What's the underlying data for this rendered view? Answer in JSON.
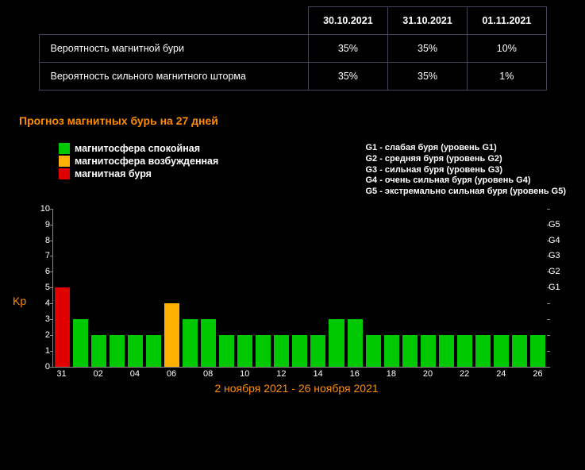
{
  "table": {
    "dates": [
      "30.10.2021",
      "31.10.2021",
      "01.11.2021"
    ],
    "rows": [
      {
        "label": "Вероятность магнитной бури",
        "values": [
          "35%",
          "35%",
          "10%"
        ]
      },
      {
        "label": "Вероятность сильного магнитного шторма",
        "values": [
          "35%",
          "35%",
          "1%"
        ]
      }
    ]
  },
  "chart_title": "Прогноз магнитных бурь на 27 дней",
  "kp_label": "Kp",
  "legend_left": [
    {
      "color": "#00c800",
      "text": "магнитосфера спокойная"
    },
    {
      "color": "#ffb000",
      "text": "магнитосфера возбужденная"
    },
    {
      "color": "#e00000",
      "text": "магнитная буря"
    }
  ],
  "legend_right": [
    "G1 - слабая буря (уровень G1)",
    "G2 - средняя буря (уровень G2)",
    "G3 - сильная буря (уровень G3)",
    "G4 - очень сильная буря (уровень G4)",
    "G5 - экстремально сильная буря (уровень G5)"
  ],
  "kp_chart": {
    "type": "bar",
    "ylim": [
      0,
      10
    ],
    "yticks": [
      0,
      1,
      2,
      3,
      4,
      5,
      6,
      7,
      8,
      9,
      10
    ],
    "right_ticks": [
      {
        "v": 5,
        "label": "G1"
      },
      {
        "v": 6,
        "label": "G2"
      },
      {
        "v": 7,
        "label": "G3"
      },
      {
        "v": 8,
        "label": "G4"
      },
      {
        "v": 9,
        "label": "G5"
      }
    ],
    "axis_color": "#888888",
    "tick_text_color": "#ffffff",
    "colors": {
      "calm": "#00c800",
      "excited": "#ffb000",
      "storm": "#e00000"
    },
    "bars": [
      {
        "day": "31",
        "kp": 5,
        "state": "storm"
      },
      {
        "day": "01",
        "kp": 3,
        "state": "calm"
      },
      {
        "day": "02",
        "kp": 2,
        "state": "calm"
      },
      {
        "day": "03",
        "kp": 2,
        "state": "calm"
      },
      {
        "day": "04",
        "kp": 2,
        "state": "calm"
      },
      {
        "day": "05",
        "kp": 2,
        "state": "calm"
      },
      {
        "day": "06",
        "kp": 4,
        "state": "excited"
      },
      {
        "day": "07",
        "kp": 3,
        "state": "calm"
      },
      {
        "day": "08",
        "kp": 3,
        "state": "calm"
      },
      {
        "day": "09",
        "kp": 2,
        "state": "calm"
      },
      {
        "day": "10",
        "kp": 2,
        "state": "calm"
      },
      {
        "day": "11",
        "kp": 2,
        "state": "calm"
      },
      {
        "day": "12",
        "kp": 2,
        "state": "calm"
      },
      {
        "day": "13",
        "kp": 2,
        "state": "calm"
      },
      {
        "day": "14",
        "kp": 2,
        "state": "calm"
      },
      {
        "day": "15",
        "kp": 3,
        "state": "calm"
      },
      {
        "day": "16",
        "kp": 3,
        "state": "calm"
      },
      {
        "day": "17",
        "kp": 2,
        "state": "calm"
      },
      {
        "day": "18",
        "kp": 2,
        "state": "calm"
      },
      {
        "day": "19",
        "kp": 2,
        "state": "calm"
      },
      {
        "day": "20",
        "kp": 2,
        "state": "calm"
      },
      {
        "day": "21",
        "kp": 2,
        "state": "calm"
      },
      {
        "day": "22",
        "kp": 2,
        "state": "calm"
      },
      {
        "day": "23",
        "kp": 2,
        "state": "calm"
      },
      {
        "day": "24",
        "kp": 2,
        "state": "calm"
      },
      {
        "day": "25",
        "kp": 2,
        "state": "calm"
      },
      {
        "day": "26",
        "kp": 2,
        "state": "calm"
      }
    ],
    "x_visible_labels": [
      "31",
      "02",
      "04",
      "06",
      "08",
      "10",
      "12",
      "14",
      "16",
      "18",
      "20",
      "22",
      "24",
      "26"
    ]
  },
  "date_range": "2 ноября 2021 - 26 ноября 2021"
}
